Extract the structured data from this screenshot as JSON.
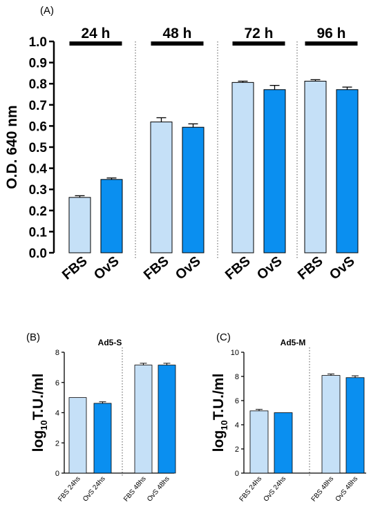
{
  "colors": {
    "fbs": "#c5e0f7",
    "ovs": "#0a8ff0",
    "axis": "#000000",
    "separator": "#555555"
  },
  "chart_data": [
    {
      "panel": "(A)",
      "type": "bar",
      "ylabel": "O.D. 640 nm",
      "ylim": [
        0,
        1.0
      ],
      "yticks": [
        "0.0",
        "0.1",
        "0.2",
        "0.3",
        "0.4",
        "0.5",
        "0.6",
        "0.7",
        "0.8",
        "0.9",
        "1.0"
      ],
      "ytick_values": [
        0,
        0.1,
        0.2,
        0.3,
        0.4,
        0.5,
        0.6,
        0.7,
        0.8,
        0.9,
        1.0
      ],
      "groups": [
        {
          "label": "24 h",
          "categories": [
            "FBS",
            "OvS"
          ],
          "values": [
            0.262,
            0.347
          ],
          "errors": [
            0.008,
            0.007
          ]
        },
        {
          "label": "48 h",
          "categories": [
            "FBS",
            "OvS"
          ],
          "values": [
            0.619,
            0.594
          ],
          "errors": [
            0.02,
            0.016
          ]
        },
        {
          "label": "72 h",
          "categories": [
            "FBS",
            "OvS"
          ],
          "values": [
            0.806,
            0.772
          ],
          "errors": [
            0.006,
            0.02
          ]
        },
        {
          "label": "96 h",
          "categories": [
            "FBS",
            "OvS"
          ],
          "values": [
            0.812,
            0.772
          ],
          "errors": [
            0.007,
            0.012
          ]
        }
      ],
      "grid": false
    },
    {
      "panel": "(B)",
      "type": "bar",
      "title": "Ad5-S",
      "ylabel_main": "log",
      "ylabel_sub": "10",
      "ylabel_rest": "T.U./ml",
      "ylim": [
        0,
        8
      ],
      "yticks": [
        "0",
        "2",
        "4",
        "6",
        "8"
      ],
      "ytick_values": [
        0,
        2,
        4,
        6,
        8
      ],
      "categories": [
        "FBS 24hs",
        "OvS 24hs",
        "FBS 48hs",
        "OvS 48hs"
      ],
      "values": [
        5.0,
        4.62,
        7.15,
        7.15
      ],
      "errors": [
        0.0,
        0.1,
        0.12,
        0.12
      ],
      "grid": false
    },
    {
      "panel": "(C)",
      "type": "bar",
      "title": "Ad5-M",
      "ylabel_main": "log",
      "ylabel_sub": "10",
      "ylabel_rest": "T.U./ml",
      "ylim": [
        0,
        10
      ],
      "yticks": [
        "0",
        "2",
        "4",
        "6",
        "8",
        "10"
      ],
      "ytick_values": [
        0,
        2,
        4,
        6,
        8,
        10
      ],
      "categories": [
        "FBS 24hs",
        "OvS 24hs",
        "FBS 48hs",
        "OvS 48hs"
      ],
      "values": [
        5.15,
        5.0,
        8.08,
        7.9
      ],
      "errors": [
        0.12,
        0.0,
        0.12,
        0.15
      ],
      "grid": false
    }
  ]
}
